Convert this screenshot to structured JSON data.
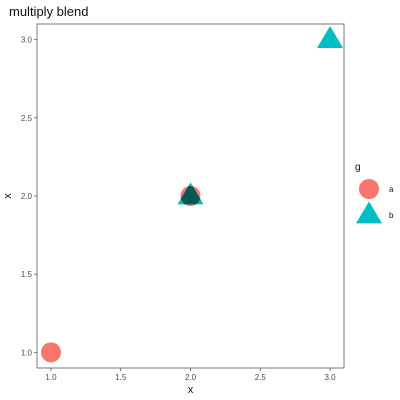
{
  "chart_data": {
    "type": "scatter",
    "title": "multiply blend",
    "xlabel": "x",
    "ylabel": "x",
    "xlim": [
      0.9,
      3.1
    ],
    "ylim": [
      0.9,
      3.1
    ],
    "x_ticks": [
      1.0,
      1.5,
      2.0,
      2.5,
      3.0
    ],
    "y_ticks": [
      1.0,
      1.5,
      2.0,
      2.5,
      3.0
    ],
    "x_tick_labels": [
      "1.0",
      "1.5",
      "2.0",
      "2.5",
      "3.0"
    ],
    "y_tick_labels": [
      "1.0",
      "1.5",
      "2.0",
      "2.5",
      "3.0"
    ],
    "grid": false,
    "blend_mode": "multiply",
    "legend": {
      "title": "g",
      "placement": "right"
    },
    "series": [
      {
        "name": "a",
        "shape": "circle",
        "color": "#F8766D",
        "points": [
          {
            "x": 1,
            "y": 1
          },
          {
            "x": 2,
            "y": 2
          }
        ]
      },
      {
        "name": "b",
        "shape": "triangle",
        "color": "#00BFC4",
        "points": [
          {
            "x": 2,
            "y": 2
          },
          {
            "x": 3,
            "y": 3
          }
        ]
      }
    ]
  }
}
